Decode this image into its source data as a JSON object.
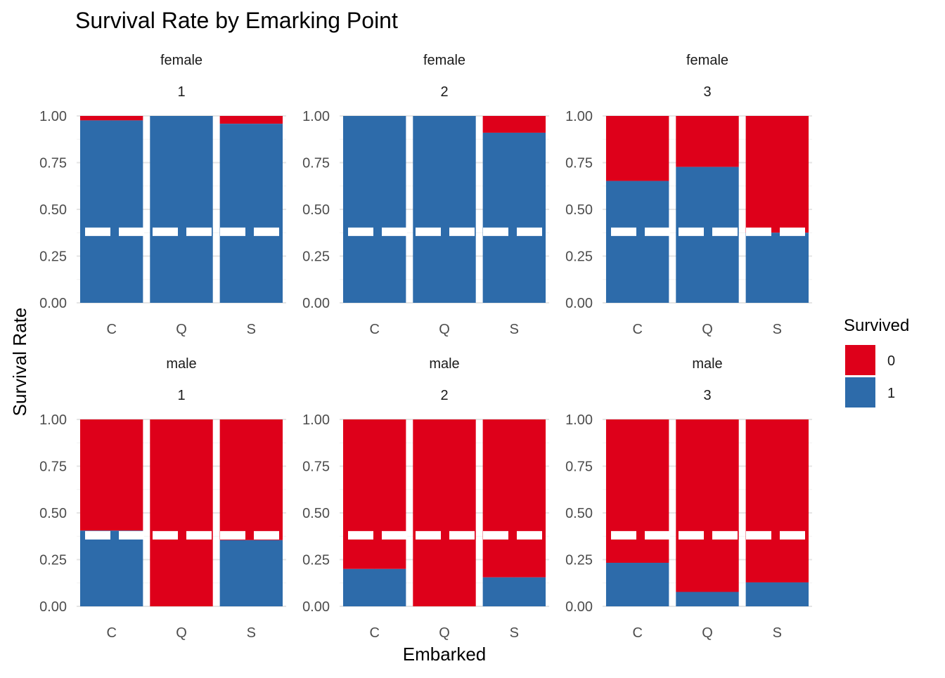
{
  "chart_data": {
    "type": "bar",
    "title": "Survival Rate by Emarking Point",
    "xlabel": "Embarked",
    "ylabel": "Survival Rate",
    "ylim": [
      0,
      1
    ],
    "y_ticks": [
      "0.00",
      "0.25",
      "0.50",
      "0.75",
      "1.00"
    ],
    "categories": [
      "C",
      "Q",
      "S"
    ],
    "stacked": true,
    "grid": true,
    "reference_line": {
      "y": 0.38,
      "style": "dashed",
      "color": "#FFFFFF"
    },
    "legend": {
      "title": "Survived",
      "position": "right",
      "entries": [
        {
          "label": "0",
          "color": "#DE001A"
        },
        {
          "label": "1",
          "color": "#2D6BAA"
        }
      ]
    },
    "facets": [
      {
        "sex": "female",
        "pclass": "1",
        "survived_rate": [
          0.976,
          1.0,
          0.958
        ]
      },
      {
        "sex": "female",
        "pclass": "2",
        "survived_rate": [
          1.0,
          1.0,
          0.91
        ]
      },
      {
        "sex": "female",
        "pclass": "3",
        "survived_rate": [
          0.652,
          0.727,
          0.375
        ]
      },
      {
        "sex": "male",
        "pclass": "1",
        "survived_rate": [
          0.405,
          0.0,
          0.354
        ]
      },
      {
        "sex": "male",
        "pclass": "2",
        "survived_rate": [
          0.2,
          0.0,
          0.155
        ]
      },
      {
        "sex": "male",
        "pclass": "3",
        "survived_rate": [
          0.233,
          0.077,
          0.128
        ]
      }
    ]
  }
}
